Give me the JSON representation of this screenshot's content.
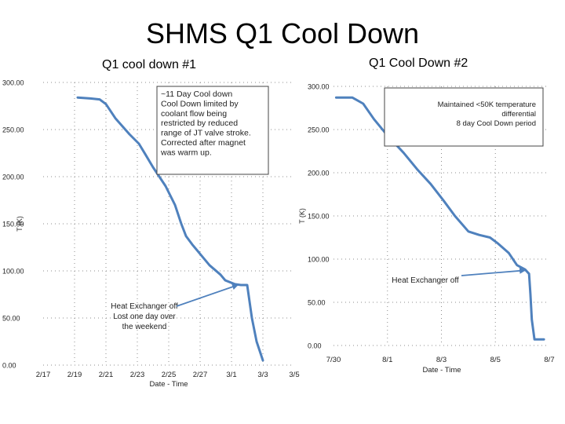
{
  "main_title": "SHMS Q1 Cool Down",
  "colors": {
    "line": "#4f81bd",
    "grid": "#8c8c8c",
    "box_border": "#444444"
  },
  "chart_data": [
    {
      "type": "line",
      "title": "Q1 cool down #1",
      "xlabel": "Date - Time",
      "ylabel": "T (K)",
      "ylim": [
        0,
        300
      ],
      "xlim": [
        0,
        16
      ],
      "y_ticks": [
        0,
        50,
        100,
        150,
        200,
        250,
        300
      ],
      "y_tick_labels": [
        "0.00",
        "50.00",
        "100.00",
        "150.00",
        "200.00",
        "250.00",
        "300.00"
      ],
      "x_ticks": [
        0,
        2,
        4,
        6,
        8,
        10,
        12,
        14,
        16
      ],
      "x_tick_labels": [
        "2/17",
        "2/19",
        "2/21",
        "2/23",
        "2/25",
        "2/27",
        "3/1",
        "3/3",
        "3/5"
      ],
      "series": [
        {
          "name": "T",
          "x": [
            2.2,
            3.0,
            3.6,
            4.0,
            4.6,
            5.5,
            6.1,
            6.5,
            7.0,
            7.8,
            8.4,
            8.8,
            9.1,
            9.5,
            10.0,
            10.6,
            11.3,
            11.6,
            12.2,
            12.6,
            13.0,
            13.3,
            13.6,
            14.0
          ],
          "y": [
            284,
            283,
            282,
            277,
            262,
            245,
            235,
            224,
            210,
            190,
            170,
            150,
            137,
            128,
            118,
            106,
            96,
            90,
            86,
            85,
            85,
            50,
            25,
            5
          ]
        }
      ],
      "annotations": [
        {
          "text": [
            "~11 Day Cool down",
            "Cool Down limited by",
            "coolant flow being",
            "restricted by reduced",
            "range of JT valve stroke.",
            "Corrected after magnet",
            "was warm up."
          ],
          "boxed": true
        },
        {
          "text": [
            "Heat Exchanger off",
            "Lost one day over",
            "the weekend"
          ],
          "boxed": false,
          "arrow_to": [
            12.4,
            85
          ]
        }
      ]
    },
    {
      "type": "line",
      "title": "Q1 Cool Down #2",
      "xlabel": "Date - Time",
      "ylabel": "T (K)",
      "ylim": [
        0,
        300
      ],
      "xlim": [
        0,
        8
      ],
      "y_ticks": [
        0,
        50,
        100,
        150,
        200,
        250,
        300
      ],
      "y_tick_labels": [
        "0.00",
        "50.00",
        "100.00",
        "150.00",
        "200.00",
        "250.00",
        "300.00"
      ],
      "x_ticks": [
        0,
        2,
        4,
        6,
        8
      ],
      "x_tick_labels": [
        "7/30",
        "8/1",
        "8/3",
        "8/5",
        "8/7"
      ],
      "series": [
        {
          "name": "T",
          "x": [
            0.1,
            0.7,
            1.1,
            1.5,
            2.0,
            2.6,
            3.1,
            3.6,
            4.1,
            4.5,
            5.0,
            5.4,
            5.8,
            6.1,
            6.5,
            6.8,
            7.1,
            7.25,
            7.3,
            7.35,
            7.45,
            7.8
          ],
          "y": [
            287,
            287,
            280,
            262,
            243,
            223,
            204,
            187,
            167,
            150,
            132,
            128,
            125,
            118,
            107,
            93,
            88,
            83,
            60,
            30,
            7,
            7
          ]
        }
      ],
      "annotations": [
        {
          "text": [
            "Maintained <50K temperature",
            "differential",
            "8 day Cool Down period"
          ],
          "boxed": true
        },
        {
          "text": [
            "Heat Exchanger off"
          ],
          "boxed": false,
          "arrow_to": [
            7.1,
            87
          ]
        }
      ]
    }
  ]
}
